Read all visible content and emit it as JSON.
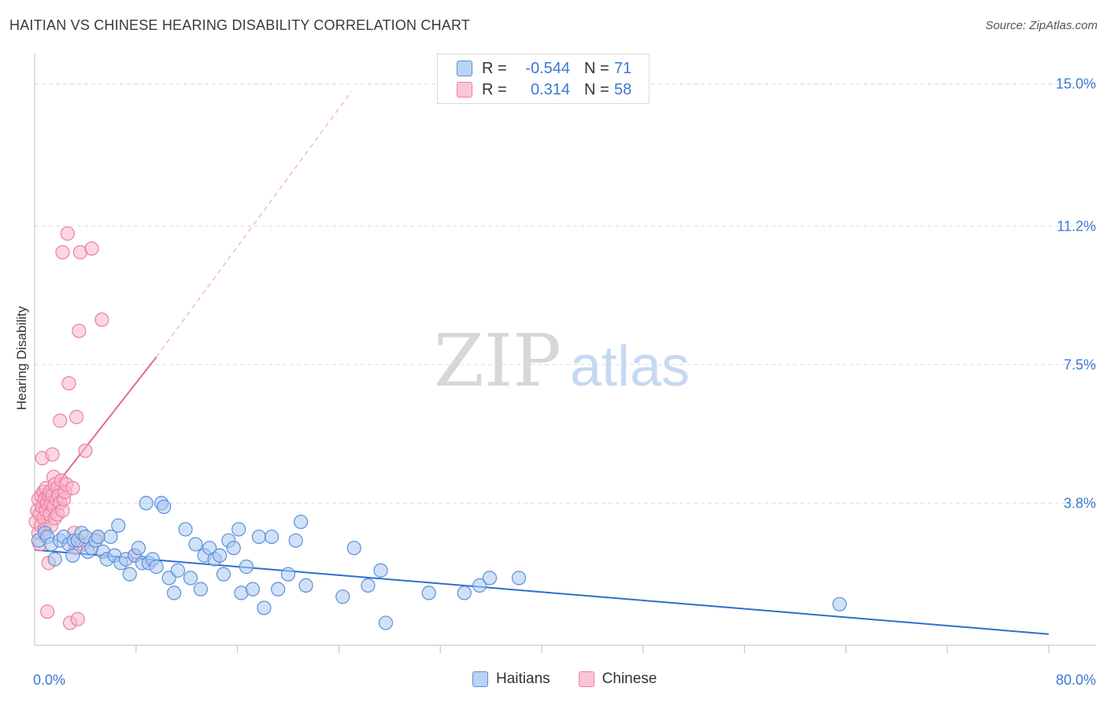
{
  "header": {
    "title": "HAITIAN VS CHINESE HEARING DISABILITY CORRELATION CHART",
    "source": "Source: ZipAtlas.com"
  },
  "watermark": {
    "zip": "ZIP",
    "atlas": "atlas"
  },
  "legend": {
    "rows": [
      {
        "r_label": "R =",
        "r_value": "-0.544",
        "n_label": "N =",
        "n_value": "71",
        "color": "#5b8fd9"
      },
      {
        "r_label": "R =",
        "r_value": "0.314",
        "n_label": "N =",
        "n_value": "58",
        "color": "#ec7ea0"
      }
    ]
  },
  "bottom_legend": {
    "haitians": "Haitians",
    "chinese": "Chinese"
  },
  "colors": {
    "haitian_fill": "#a9c8f0",
    "haitian_stroke": "#5b8fd9",
    "haitian_line": "#2e6fce",
    "chinese_fill": "#f7b7ca",
    "chinese_stroke": "#ec7ea0",
    "chinese_line": "#e5698f",
    "grid": "#dcdcdc",
    "tick_label": "#3a78d4"
  },
  "chart_data": {
    "type": "scatter",
    "title": "HAITIAN VS CHINESE HEARING DISABILITY CORRELATION CHART",
    "xlabel": "",
    "ylabel": "Hearing Disability",
    "xlim": [
      0,
      80
    ],
    "ylim": [
      0,
      15.6
    ],
    "x_tick_labels": [
      {
        "value": 0,
        "label": "0.0%"
      },
      {
        "value": 80,
        "label": "80.0%"
      }
    ],
    "y_tick_labels": [
      {
        "value": 3.8,
        "label": "3.8%"
      },
      {
        "value": 7.5,
        "label": "7.5%"
      },
      {
        "value": 11.2,
        "label": "11.2%"
      },
      {
        "value": 15.0,
        "label": "15.0%"
      }
    ],
    "series": [
      {
        "name": "Haitians",
        "r": -0.544,
        "n": 71,
        "trend": {
          "x": [
            0,
            80
          ],
          "y": [
            2.55,
            0.3
          ],
          "style": "solid"
        },
        "points": [
          [
            0.3,
            2.8
          ],
          [
            0.8,
            3.0
          ],
          [
            1.0,
            2.9
          ],
          [
            1.3,
            2.7
          ],
          [
            1.6,
            2.3
          ],
          [
            2.0,
            2.8
          ],
          [
            2.3,
            2.9
          ],
          [
            2.7,
            2.7
          ],
          [
            3.1,
            2.8
          ],
          [
            3.0,
            2.4
          ],
          [
            3.4,
            2.8
          ],
          [
            3.7,
            3.0
          ],
          [
            4.0,
            2.9
          ],
          [
            4.2,
            2.5
          ],
          [
            4.5,
            2.6
          ],
          [
            4.8,
            2.8
          ],
          [
            5.0,
            2.9
          ],
          [
            5.4,
            2.5
          ],
          [
            5.7,
            2.3
          ],
          [
            6.0,
            2.9
          ],
          [
            6.3,
            2.4
          ],
          [
            6.6,
            3.2
          ],
          [
            6.8,
            2.2
          ],
          [
            7.2,
            2.3
          ],
          [
            7.5,
            1.9
          ],
          [
            7.9,
            2.4
          ],
          [
            8.2,
            2.6
          ],
          [
            8.5,
            2.2
          ],
          [
            8.8,
            3.8
          ],
          [
            9.0,
            2.2
          ],
          [
            9.3,
            2.3
          ],
          [
            9.6,
            2.1
          ],
          [
            10.0,
            3.8
          ],
          [
            10.2,
            3.7
          ],
          [
            10.6,
            1.8
          ],
          [
            11.0,
            1.4
          ],
          [
            11.3,
            2.0
          ],
          [
            11.9,
            3.1
          ],
          [
            12.3,
            1.8
          ],
          [
            12.7,
            2.7
          ],
          [
            13.1,
            1.5
          ],
          [
            13.4,
            2.4
          ],
          [
            13.8,
            2.6
          ],
          [
            14.2,
            2.3
          ],
          [
            14.6,
            2.4
          ],
          [
            14.9,
            1.9
          ],
          [
            15.3,
            2.8
          ],
          [
            15.7,
            2.6
          ],
          [
            16.1,
            3.1
          ],
          [
            16.3,
            1.4
          ],
          [
            16.7,
            2.1
          ],
          [
            17.2,
            1.5
          ],
          [
            17.7,
            2.9
          ],
          [
            18.1,
            1.0
          ],
          [
            18.7,
            2.9
          ],
          [
            19.2,
            1.5
          ],
          [
            20.0,
            1.9
          ],
          [
            20.6,
            2.8
          ],
          [
            21.0,
            3.3
          ],
          [
            21.4,
            1.6
          ],
          [
            24.3,
            1.3
          ],
          [
            25.2,
            2.6
          ],
          [
            26.3,
            1.6
          ],
          [
            27.3,
            2.0
          ],
          [
            27.7,
            0.6
          ],
          [
            31.1,
            1.4
          ],
          [
            33.9,
            1.4
          ],
          [
            35.1,
            1.6
          ],
          [
            35.9,
            1.8
          ],
          [
            38.2,
            1.8
          ],
          [
            63.5,
            1.1
          ]
        ]
      },
      {
        "name": "Chinese",
        "r": 0.314,
        "n": 58,
        "trend": {
          "x": [
            0,
            9.6
          ],
          "y": [
            3.55,
            7.7
          ],
          "style": "solid",
          "dashed_extension": {
            "x": [
              9.6,
              25.0
            ],
            "y": [
              7.7,
              14.8
            ]
          }
        },
        "points": [
          [
            0.1,
            3.3
          ],
          [
            0.2,
            3.6
          ],
          [
            0.3,
            3.0
          ],
          [
            0.3,
            3.9
          ],
          [
            0.4,
            3.5
          ],
          [
            0.5,
            4.0
          ],
          [
            0.5,
            3.2
          ],
          [
            0.6,
            3.7
          ],
          [
            0.6,
            5.0
          ],
          [
            0.7,
            4.1
          ],
          [
            0.7,
            3.4
          ],
          [
            0.8,
            3.9
          ],
          [
            0.8,
            3.1
          ],
          [
            0.9,
            4.2
          ],
          [
            0.9,
            3.6
          ],
          [
            1.0,
            3.8
          ],
          [
            1.0,
            0.9
          ],
          [
            1.1,
            4.0
          ],
          [
            1.1,
            2.2
          ],
          [
            1.2,
            3.5
          ],
          [
            1.2,
            4.1
          ],
          [
            1.3,
            3.8
          ],
          [
            1.3,
            3.2
          ],
          [
            1.4,
            4.0
          ],
          [
            1.4,
            5.1
          ],
          [
            1.5,
            3.7
          ],
          [
            1.5,
            4.5
          ],
          [
            1.6,
            3.4
          ],
          [
            1.6,
            4.3
          ],
          [
            1.7,
            3.9
          ],
          [
            1.8,
            4.2
          ],
          [
            1.8,
            3.5
          ],
          [
            1.9,
            4.0
          ],
          [
            2.0,
            3.8
          ],
          [
            2.0,
            6.0
          ],
          [
            2.1,
            4.4
          ],
          [
            2.2,
            3.6
          ],
          [
            2.2,
            10.5
          ],
          [
            2.3,
            3.9
          ],
          [
            2.4,
            4.1
          ],
          [
            2.5,
            4.3
          ],
          [
            2.6,
            11.0
          ],
          [
            2.7,
            7.0
          ],
          [
            2.8,
            0.6
          ],
          [
            3.0,
            4.2
          ],
          [
            3.2,
            2.6
          ],
          [
            3.1,
            3.0
          ],
          [
            3.3,
            6.1
          ],
          [
            3.4,
            0.7
          ],
          [
            3.5,
            8.4
          ],
          [
            3.6,
            10.5
          ],
          [
            3.8,
            2.7
          ],
          [
            4.0,
            5.2
          ],
          [
            4.5,
            10.6
          ],
          [
            5.0,
            2.9
          ],
          [
            5.3,
            8.7
          ],
          [
            7.9,
            2.4
          ],
          [
            0.4,
            2.7
          ]
        ]
      }
    ]
  }
}
